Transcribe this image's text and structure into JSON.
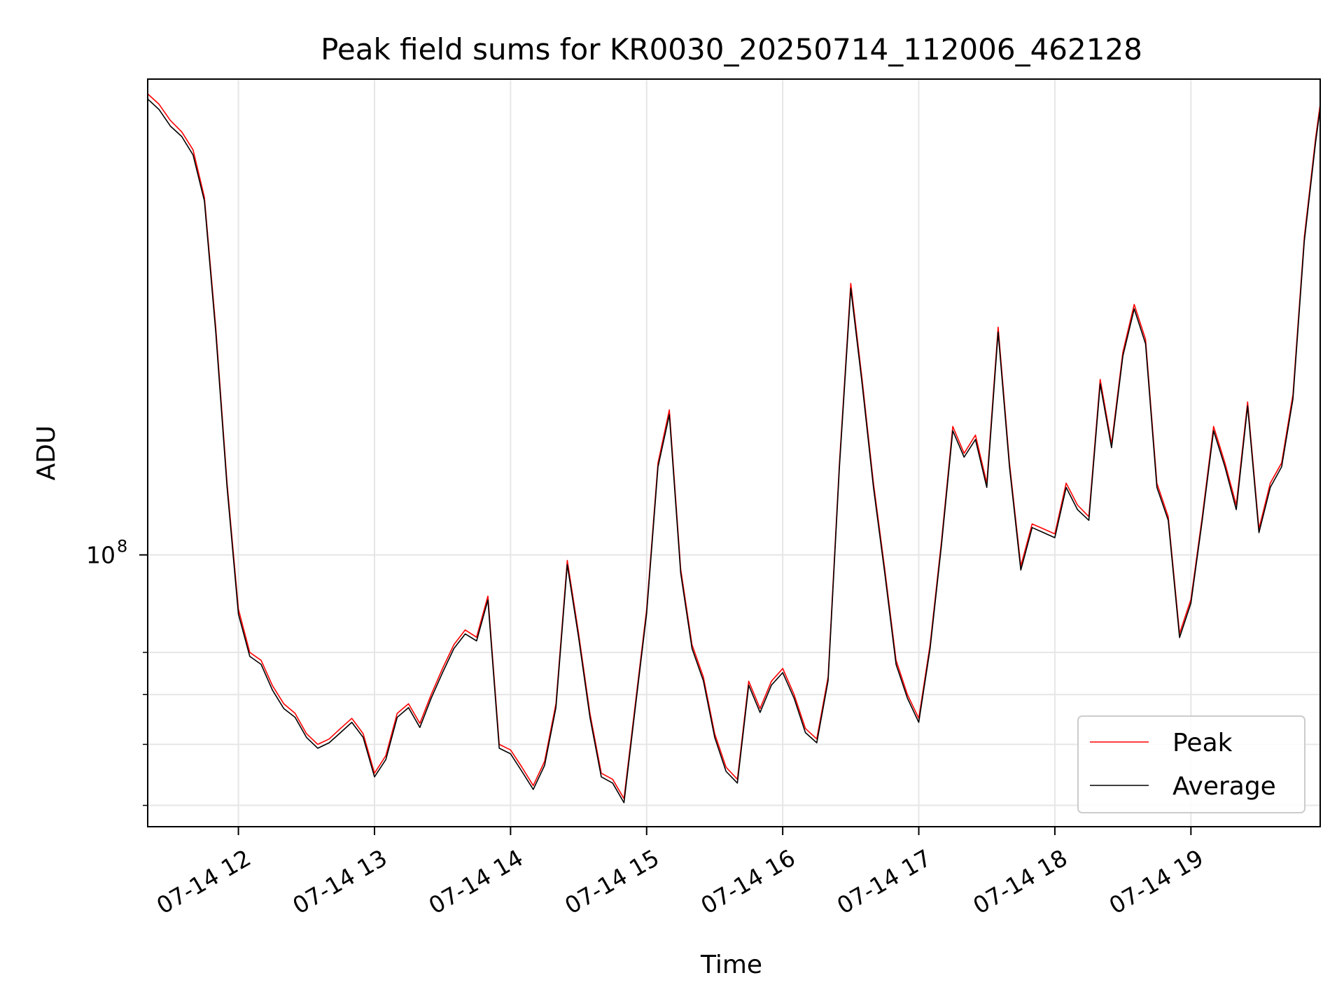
{
  "chart_data": {
    "type": "line",
    "title": "Peak field sums for KR0030_20250714_112006_462128",
    "xlabel": "Time",
    "ylabel": "ADU",
    "xlim": [
      "2025-07-14T11:20",
      "2025-07-14T19:57"
    ],
    "ylim": [
      37000000,
      570000000
    ],
    "y_scale": "log",
    "y_major_ticks": [
      {
        "value": 100000000,
        "label_base": "10",
        "label_exp": "8"
      }
    ],
    "y_minor_ticks": [
      40000000,
      50000000,
      60000000,
      70000000
    ],
    "x_ticks": [
      {
        "t": "2025-07-14T12:00",
        "label": "07-14 12"
      },
      {
        "t": "2025-07-14T13:00",
        "label": "07-14 13"
      },
      {
        "t": "2025-07-14T14:00",
        "label": "07-14 14"
      },
      {
        "t": "2025-07-14T15:00",
        "label": "07-14 15"
      },
      {
        "t": "2025-07-14T16:00",
        "label": "07-14 16"
      },
      {
        "t": "2025-07-14T17:00",
        "label": "07-14 17"
      },
      {
        "t": "2025-07-14T18:00",
        "label": "07-14 18"
      },
      {
        "t": "2025-07-14T19:00",
        "label": "07-14 19"
      }
    ],
    "grid": true,
    "legend_position": "lower-right",
    "series": [
      {
        "name": "Peak",
        "color": "#ff0000"
      },
      {
        "name": "Average",
        "color": "#000000"
      }
    ],
    "x": [
      "11:20",
      "11:25",
      "11:30",
      "11:35",
      "11:40",
      "11:45",
      "11:50",
      "11:55",
      "12:00",
      "12:05",
      "12:10",
      "12:15",
      "12:20",
      "12:25",
      "12:30",
      "12:35",
      "12:40",
      "12:45",
      "12:50",
      "12:55",
      "13:00",
      "13:05",
      "13:10",
      "13:15",
      "13:20",
      "13:25",
      "13:30",
      "13:35",
      "13:40",
      "13:45",
      "13:50",
      "13:55",
      "14:00",
      "14:05",
      "14:10",
      "14:15",
      "14:20",
      "14:25",
      "14:30",
      "14:35",
      "14:40",
      "14:45",
      "14:50",
      "14:55",
      "15:00",
      "15:05",
      "15:10",
      "15:15",
      "15:20",
      "15:25",
      "15:30",
      "15:35",
      "15:40",
      "15:45",
      "15:50",
      "15:55",
      "16:00",
      "16:05",
      "16:10",
      "16:15",
      "16:20",
      "16:25",
      "16:30",
      "16:35",
      "16:40",
      "16:45",
      "16:50",
      "16:55",
      "17:00",
      "17:05",
      "17:10",
      "17:15",
      "17:20",
      "17:25",
      "17:30",
      "17:35",
      "17:40",
      "17:45",
      "17:50",
      "17:55",
      "18:00",
      "18:05",
      "18:10",
      "18:15",
      "18:20",
      "18:25",
      "18:30",
      "18:35",
      "18:40",
      "18:45",
      "18:50",
      "18:55",
      "19:00",
      "19:05",
      "19:10",
      "19:15",
      "19:20",
      "19:25",
      "19:30",
      "19:35",
      "19:40",
      "19:45",
      "19:50",
      "19:55",
      "19:57"
    ],
    "peak_values": [
      540000000,
      520000000,
      490000000,
      470000000,
      440000000,
      370000000,
      230000000,
      130000000,
      82000000,
      70000000,
      68000000,
      62000000,
      58000000,
      56000000,
      52000000,
      50000000,
      51000000,
      53000000,
      55000000,
      52000000,
      45000000,
      48000000,
      56000000,
      58000000,
      54000000,
      60000000,
      66000000,
      72000000,
      76000000,
      74000000,
      86000000,
      50000000,
      49000000,
      46000000,
      43000000,
      47000000,
      58000000,
      98000000,
      75000000,
      56000000,
      45000000,
      44000000,
      41000000,
      58000000,
      82000000,
      140000000,
      170000000,
      95000000,
      72000000,
      64000000,
      52000000,
      46000000,
      44000000,
      63000000,
      57000000,
      63000000,
      66000000,
      60000000,
      53000000,
      51000000,
      64000000,
      140000000,
      270000000,
      190000000,
      130000000,
      95000000,
      68000000,
      60000000,
      55000000,
      72000000,
      105000000,
      160000000,
      145000000,
      155000000,
      130000000,
      230000000,
      140000000,
      96000000,
      112000000,
      110000000,
      108000000,
      130000000,
      120000000,
      115000000,
      190000000,
      150000000,
      210000000,
      250000000,
      220000000,
      130000000,
      115000000,
      75000000,
      85000000,
      115000000,
      160000000,
      140000000,
      120000000,
      175000000,
      110000000,
      130000000,
      140000000,
      180000000,
      320000000,
      460000000,
      520000000
    ],
    "average_values": [
      530000000,
      510000000,
      480000000,
      462000000,
      432000000,
      365000000,
      226000000,
      128000000,
      80500000,
      69000000,
      67000000,
      61000000,
      57000000,
      55200000,
      51300000,
      49300000,
      50300000,
      52200000,
      54200000,
      51300000,
      44400000,
      47300000,
      55200000,
      57200000,
      53200000,
      59200000,
      65000000,
      71000000,
      74900000,
      73000000,
      84800000,
      49300000,
      48300000,
      45300000,
      42400000,
      46300000,
      57200000,
      96500000,
      73900000,
      55200000,
      44400000,
      43400000,
      40400000,
      57200000,
      80800000,
      138000000,
      167000000,
      93600000,
      71000000,
      63100000,
      51300000,
      45300000,
      43400000,
      62100000,
      56200000,
      62100000,
      65000000,
      59200000,
      52200000,
      50300000,
      63100000,
      138000000,
      265000000,
      187000000,
      128000000,
      93600000,
      67000000,
      59200000,
      54200000,
      71000000,
      103500000,
      157500000,
      143000000,
      152500000,
      128000000,
      226000000,
      138000000,
      94600000,
      110500000,
      108500000,
      106500000,
      128000000,
      118000000,
      113500000,
      187000000,
      148000000,
      207000000,
      246000000,
      216500000,
      128000000,
      113500000,
      73900000,
      83800000,
      113500000,
      157500000,
      138000000,
      118000000,
      172500000,
      108500000,
      128000000,
      138000000,
      177000000,
      315000000,
      453000000,
      512000000
    ]
  }
}
